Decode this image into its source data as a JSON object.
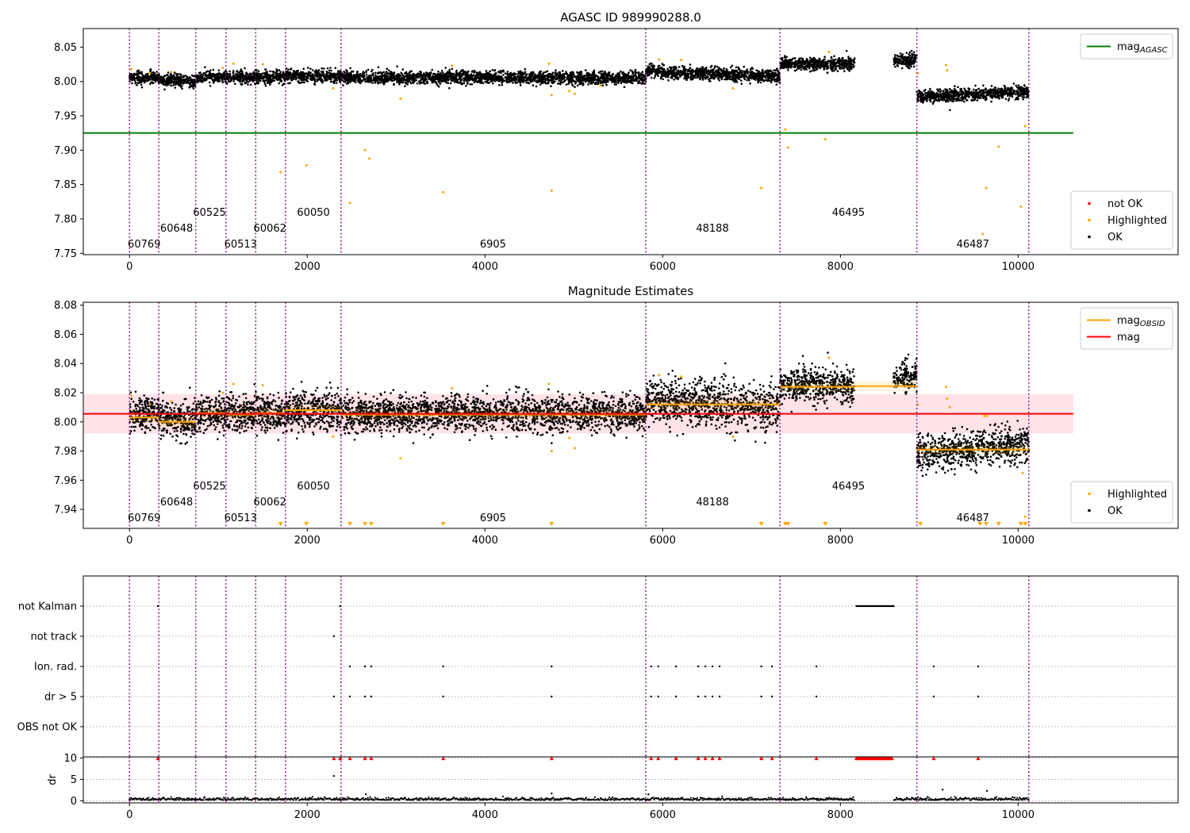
{
  "colors": {
    "ok": "#000000",
    "highlighted": "#ffa500",
    "not_ok": "#ff0000",
    "mag_agasc": "#008000",
    "mag": "#ff0000",
    "mag_obsid": "#ffa500",
    "obs_boundary": "#800080",
    "mag_band": "#ffc0cb"
  },
  "obs_boundaries": [
    0,
    330,
    745,
    1085,
    1420,
    1755,
    2380,
    5810,
    7320,
    8860,
    10120
  ],
  "obsids": [
    {
      "label": "60769",
      "x": 165,
      "row": 0
    },
    {
      "label": "60648",
      "x": 530,
      "row": 1
    },
    {
      "label": "60525",
      "x": 900,
      "row": 2
    },
    {
      "label": "60513",
      "x": 1250,
      "row": 0
    },
    {
      "label": "60062",
      "x": 1580,
      "row": 1
    },
    {
      "label": "60050",
      "x": 2070,
      "row": 2
    },
    {
      "label": "6905",
      "x": 4090,
      "row": 0
    },
    {
      "label": "48188",
      "x": 6560,
      "row": 1
    },
    {
      "label": "46495",
      "x": 8090,
      "row": 2
    },
    {
      "label": "46487",
      "x": 9490,
      "row": 0
    }
  ],
  "chart_data": [
    {
      "type": "scatter",
      "title": "AGASC ID 989990288.0",
      "xlim": [
        -520,
        11800
      ],
      "ylim": [
        7.748,
        8.077
      ],
      "xticks": [
        "0",
        "2000",
        "4000",
        "6000",
        "8000",
        "10000"
      ],
      "yticks": [
        "7.75",
        "7.80",
        "7.85",
        "7.90",
        "7.95",
        "8.00",
        "8.05"
      ],
      "mag_agasc": {
        "value": 7.925,
        "x_range": [
          -520,
          10620
        ]
      },
      "segments": [
        {
          "x": [
            0,
            330
          ],
          "y": [
            8.005,
            8.006
          ]
        },
        {
          "x": [
            330,
            745
          ],
          "y": [
            8.003,
            8.0
          ]
        },
        {
          "x": [
            745,
            1085
          ],
          "y": [
            8.006,
            8.006
          ]
        },
        {
          "x": [
            1085,
            1420
          ],
          "y": [
            8.006,
            8.006
          ]
        },
        {
          "x": [
            1420,
            1755
          ],
          "y": [
            8.006,
            8.006
          ]
        },
        {
          "x": [
            1755,
            2380
          ],
          "y": [
            8.009,
            8.007
          ]
        },
        {
          "x": [
            2380,
            5810
          ],
          "y": [
            8.006,
            8.005
          ]
        },
        {
          "x": [
            5810,
            7320
          ],
          "y": [
            8.014,
            8.008
          ]
        },
        {
          "x": [
            7320,
            8160
          ],
          "y": [
            8.026,
            8.025
          ]
        },
        {
          "x": [
            8600,
            8860
          ],
          "y": [
            8.03,
            8.032
          ]
        },
        {
          "x": [
            8860,
            10120
          ],
          "y": [
            7.978,
            7.985
          ]
        }
      ],
      "highlighted": [
        [
          20,
          8.018
        ],
        [
          230,
          8.012
        ],
        [
          470,
          8.014
        ],
        [
          1050,
          8.02
        ],
        [
          1170,
          8.026
        ],
        [
          1500,
          8.025
        ],
        [
          1700,
          7.868
        ],
        [
          1990,
          7.878
        ],
        [
          2290,
          7.99
        ],
        [
          2480,
          7.823
        ],
        [
          2650,
          7.9
        ],
        [
          2700,
          7.888
        ],
        [
          3050,
          7.975
        ],
        [
          3530,
          7.839
        ],
        [
          3630,
          8.023
        ],
        [
          4720,
          8.026
        ],
        [
          4750,
          7.841
        ],
        [
          4750,
          7.98
        ],
        [
          4950,
          7.986
        ],
        [
          5010,
          7.982
        ],
        [
          5300,
          7.994
        ],
        [
          5960,
          8.032
        ],
        [
          6210,
          8.031
        ],
        [
          6790,
          7.99
        ],
        [
          7110,
          7.845
        ],
        [
          7380,
          7.93
        ],
        [
          7410,
          7.904
        ],
        [
          7830,
          7.916
        ],
        [
          7870,
          8.043
        ],
        [
          8870,
          8.012
        ],
        [
          9190,
          8.024
        ],
        [
          9200,
          8.016
        ],
        [
          9600,
          7.778
        ],
        [
          9640,
          7.845
        ],
        [
          9780,
          7.905
        ],
        [
          10030,
          7.818
        ],
        [
          10080,
          7.935
        ]
      ],
      "legends": [
        {
          "position": "top-right",
          "entries": [
            {
              "kind": "line",
              "color_key": "mag_agasc",
              "label": "mag",
              "sub": "AGASC"
            }
          ]
        },
        {
          "position": "bottom-right",
          "entries": [
            {
              "kind": "dot",
              "color_key": "not_ok",
              "label": "not OK"
            },
            {
              "kind": "dot",
              "color_key": "highlighted",
              "label": "Highlighted"
            },
            {
              "kind": "dot",
              "color_key": "ok",
              "label": "OK"
            }
          ]
        }
      ]
    },
    {
      "type": "scatter",
      "title": "Magnitude Estimates",
      "xlim": [
        -520,
        11800
      ],
      "ylim": [
        7.927,
        8.082
      ],
      "xticks": [
        "0",
        "2000",
        "4000",
        "6000",
        "8000",
        "10000"
      ],
      "yticks": [
        "7.94",
        "7.96",
        "7.98",
        "8.00",
        "8.02",
        "8.04",
        "8.06",
        "8.08"
      ],
      "mag": {
        "value": 8.0055,
        "band": [
          7.992,
          8.019
        ],
        "x_range": [
          -520,
          10620
        ]
      },
      "mag_obsid": [
        {
          "x": [
            0,
            330
          ],
          "value": 8.003
        },
        {
          "x": [
            330,
            745
          ],
          "value": 8.0
        },
        {
          "x": [
            745,
            1085
          ],
          "value": 8.006
        },
        {
          "x": [
            1085,
            1420
          ],
          "value": 8.005
        },
        {
          "x": [
            1420,
            1755
          ],
          "value": 8.006
        },
        {
          "x": [
            1755,
            2380
          ],
          "value": 8.008
        },
        {
          "x": [
            2380,
            5810
          ],
          "value": 8.005
        },
        {
          "x": [
            5810,
            7320
          ],
          "value": 8.012
        },
        {
          "x": [
            7320,
            8160
          ],
          "value": 8.024
        },
        {
          "x": [
            8160,
            8860
          ],
          "value": 8.0245
        },
        {
          "x": [
            8860,
            10120
          ],
          "value": 7.981
        }
      ],
      "segments": [
        {
          "x": [
            0,
            330
          ],
          "y": [
            8.005,
            8.006
          ],
          "sd": 0.006
        },
        {
          "x": [
            330,
            745
          ],
          "y": [
            8.003,
            8.0
          ],
          "sd": 0.006
        },
        {
          "x": [
            745,
            1085
          ],
          "y": [
            8.006,
            8.006
          ],
          "sd": 0.006
        },
        {
          "x": [
            1085,
            1420
          ],
          "y": [
            8.006,
            8.006
          ],
          "sd": 0.006
        },
        {
          "x": [
            1420,
            1755
          ],
          "y": [
            8.006,
            8.006
          ],
          "sd": 0.006
        },
        {
          "x": [
            1755,
            2380
          ],
          "y": [
            8.009,
            8.007
          ],
          "sd": 0.007
        },
        {
          "x": [
            2380,
            5810
          ],
          "y": [
            8.006,
            8.005
          ],
          "sd": 0.006
        },
        {
          "x": [
            5810,
            7320
          ],
          "y": [
            8.014,
            8.01
          ],
          "sd": 0.008
        },
        {
          "x": [
            7320,
            8160
          ],
          "y": [
            8.026,
            8.024
          ],
          "sd": 0.006
        },
        {
          "x": [
            8600,
            8860
          ],
          "y": [
            8.03,
            8.032
          ],
          "sd": 0.005
        },
        {
          "x": [
            8860,
            10120
          ],
          "y": [
            7.978,
            7.985
          ],
          "sd": 0.006
        }
      ],
      "highlighted": [
        [
          20,
          8.018
        ],
        [
          230,
          8.012
        ],
        [
          470,
          8.014
        ],
        [
          1050,
          8.02
        ],
        [
          1170,
          8.026
        ],
        [
          1500,
          8.025
        ],
        [
          2290,
          7.99
        ],
        [
          3050,
          7.975
        ],
        [
          3630,
          8.023
        ],
        [
          4720,
          8.026
        ],
        [
          4750,
          7.98
        ],
        [
          4950,
          7.989
        ],
        [
          5010,
          7.982
        ],
        [
          5960,
          8.032
        ],
        [
          6210,
          8.031
        ],
        [
          6790,
          7.99
        ],
        [
          7870,
          8.044
        ],
        [
          8870,
          8.012
        ],
        [
          9190,
          8.024
        ],
        [
          9200,
          8.016
        ],
        [
          9230,
          8.01
        ],
        [
          9620,
          8.004
        ],
        [
          9650,
          8.004
        ],
        [
          10050,
          7.965
        ],
        [
          10080,
          7.935
        ]
      ],
      "below_limit_markers": [
        1700,
        1990,
        2480,
        2650,
        2720,
        3530,
        4750,
        7110,
        7380,
        7410,
        7830,
        8900,
        9570,
        9640,
        9780,
        10030,
        10080
      ],
      "legends": [
        {
          "position": "top-right",
          "entries": [
            {
              "kind": "line",
              "color_key": "mag_obsid",
              "label": "mag",
              "sub": "OBSID"
            },
            {
              "kind": "line",
              "color_key": "mag",
              "label": "mag",
              "sub": ""
            }
          ]
        },
        {
          "position": "bottom-right",
          "entries": [
            {
              "kind": "dot",
              "color_key": "highlighted",
              "label": "Highlighted"
            },
            {
              "kind": "dot",
              "color_key": "ok",
              "label": "OK"
            }
          ]
        }
      ]
    },
    {
      "type": "scatter",
      "title": "",
      "xlim": [
        -520,
        11800
      ],
      "categories": [
        "not Kalman",
        "not track",
        "Ion. rad.",
        "dr > 5",
        "OBS not OK"
      ],
      "flags": {
        "not Kalman": [
          320,
          2370
        ],
        "not track": [
          2300
        ],
        "Ion. rad.": [
          2480,
          2650,
          2720,
          3530,
          4750,
          5870,
          5950,
          6150,
          6400,
          6480,
          6560,
          6640,
          7110,
          7230,
          7730,
          9050,
          9550
        ],
        "dr > 5": [
          2300,
          2480,
          2650,
          2720,
          3530,
          4750,
          5870,
          5950,
          6150,
          6400,
          6480,
          6560,
          6640,
          7110,
          7230,
          7730,
          9050,
          9550
        ],
        "OBS not OK": []
      },
      "not_kalman_range": [
        8180,
        8600
      ]
    },
    {
      "type": "scatter",
      "title": "",
      "ylabel": "dr",
      "xlim": [
        -520,
        11800
      ],
      "ylim": [
        -0.5,
        10.3
      ],
      "xticks": [
        "0",
        "2000",
        "4000",
        "6000",
        "8000",
        "10000"
      ],
      "yticks": [
        "0",
        "5",
        "10"
      ],
      "gap": [
        8160,
        8600
      ],
      "capped_markers": [
        320,
        2300,
        2370,
        2480,
        2650,
        2720,
        3530,
        4750,
        5870,
        5950,
        6150,
        6400,
        6480,
        6560,
        6640,
        7110,
        7230,
        7730,
        9050,
        9550
      ],
      "outliers": [
        [
          2300,
          5.8
        ],
        [
          2660,
          1.5
        ],
        [
          4750,
          1.7
        ],
        [
          5840,
          1.5
        ],
        [
          9150,
          2.6
        ],
        [
          9650,
          2.3
        ]
      ]
    }
  ]
}
